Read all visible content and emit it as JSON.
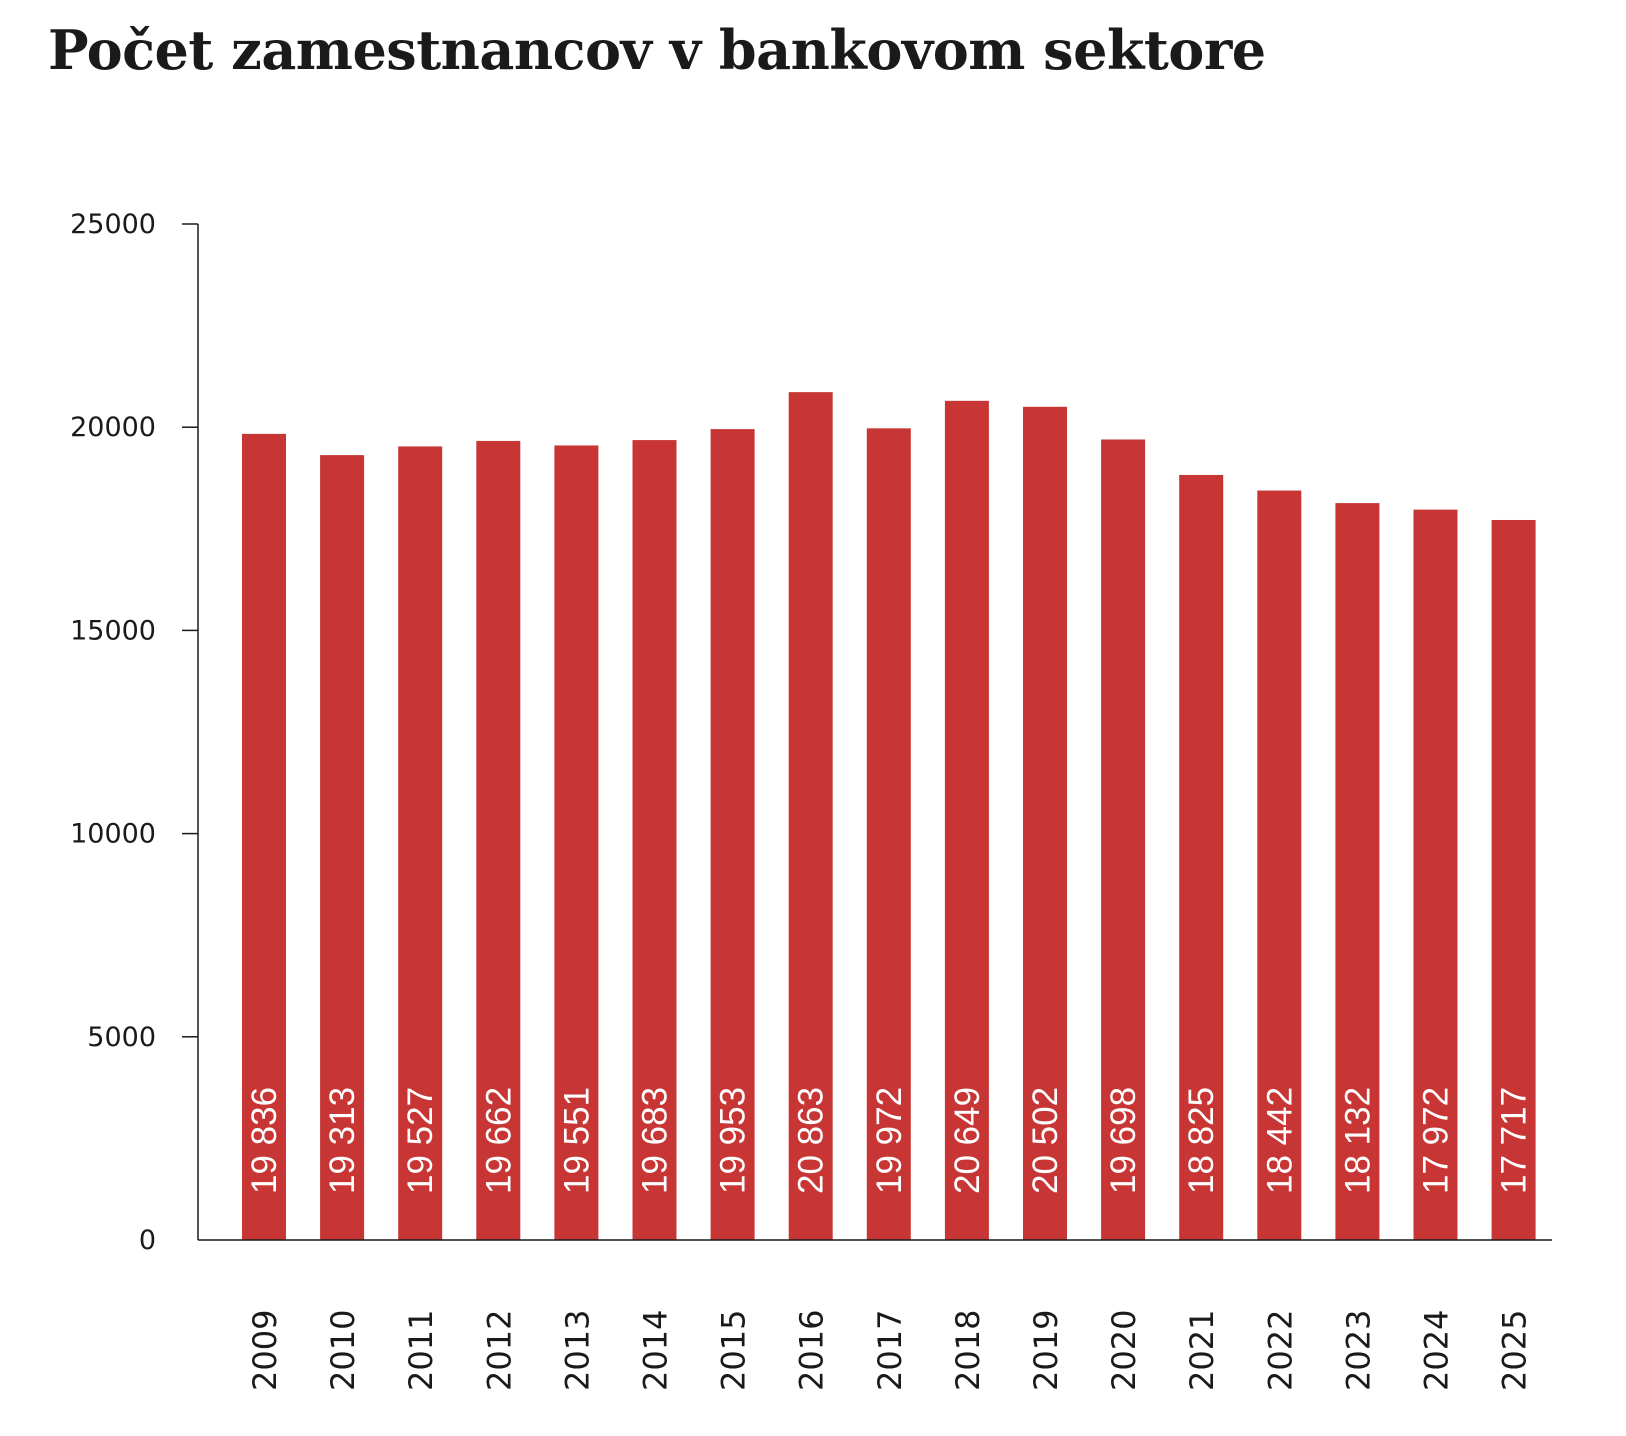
{
  "title": "Počet zamestnancov v bankovom sektore",
  "colors": {
    "bar": "#c73634",
    "axis": "#1a1a1a",
    "value_label": "#ffffff"
  },
  "chart_data": {
    "type": "bar",
    "title": "Počet zamestnancov v bankovom sektore",
    "xlabel": "",
    "ylabel": "",
    "ylim": [
      0,
      25000
    ],
    "yticks": [
      0,
      5000,
      10000,
      15000,
      20000,
      25000
    ],
    "grid": false,
    "legend": "none",
    "categories": [
      "2009",
      "2010",
      "2011",
      "2012",
      "2013",
      "2014",
      "2015",
      "2016",
      "2017",
      "2018",
      "2019",
      "2020",
      "2021",
      "2022",
      "2023",
      "2024",
      "2025"
    ],
    "values": [
      19836,
      19313,
      19527,
      19662,
      19551,
      19683,
      19953,
      20863,
      19972,
      20649,
      20502,
      19698,
      18825,
      18442,
      18132,
      17972,
      17717
    ],
    "value_labels": [
      "19 836",
      "19 313",
      "19 527",
      "19 662",
      "19 551",
      "19 683",
      "19 953",
      "20 863",
      "19 972",
      "20 649",
      "20 502",
      "19 698",
      "18 825",
      "18 442",
      "18 132",
      "17 972",
      "17 717"
    ]
  }
}
